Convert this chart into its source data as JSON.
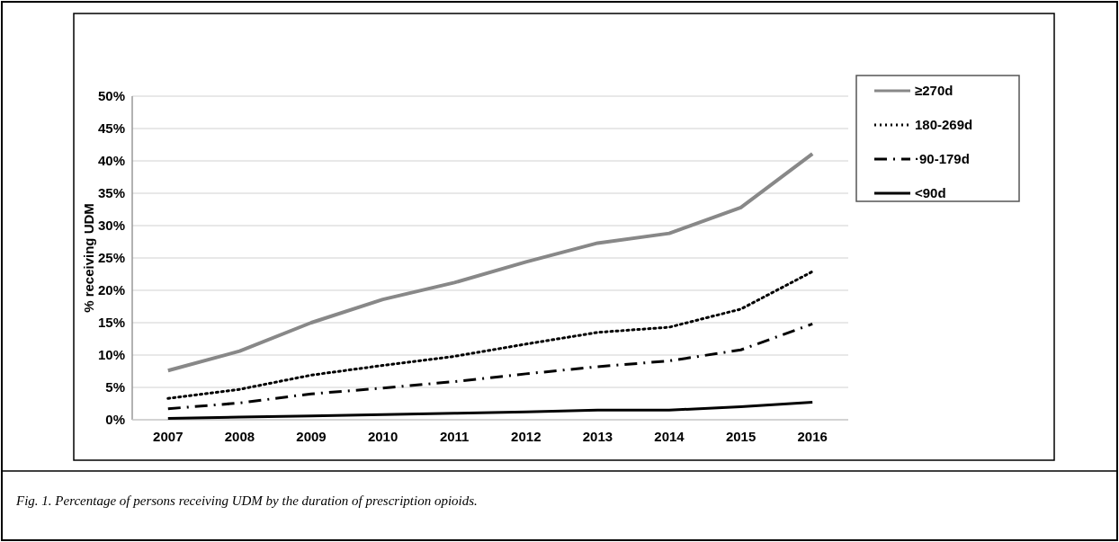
{
  "chart_data": {
    "type": "line",
    "ylabel": "% receiving UDM",
    "categories": [
      "2007",
      "2008",
      "2009",
      "2010",
      "2011",
      "2012",
      "2013",
      "2014",
      "2015",
      "2016"
    ],
    "series": [
      {
        "name": "≥270d",
        "color": "#888888",
        "line_style": "solid",
        "values": [
          7.6,
          10.6,
          15,
          18.6,
          21.2,
          24.4,
          27.3,
          28.8,
          32.8,
          41.1
        ]
      },
      {
        "name": "180-269d",
        "color": "#000000",
        "line_style": "dotted",
        "values": [
          3.3,
          4.7,
          6.9,
          8.4,
          9.8,
          11.7,
          13.5,
          14.3,
          17.1,
          22.9
        ]
      },
      {
        "name": "·90-179d",
        "color": "#000000",
        "line_style": "dashed",
        "values": [
          1.7,
          2.6,
          4,
          4.9,
          5.9,
          7.1,
          8.2,
          9.1,
          10.8,
          14.8
        ]
      },
      {
        "name": "<90d",
        "color": "#000000",
        "line_style": "solid",
        "values": [
          0.2,
          0.4,
          0.6,
          0.8,
          1,
          1.2,
          1.5,
          1.5,
          2,
          2.7
        ]
      }
    ],
    "ylim": [
      0,
      50
    ],
    "yticks": [
      {
        "value": 0,
        "label": "0%"
      },
      {
        "value": 5,
        "label": "5%"
      },
      {
        "value": 10,
        "label": "10%"
      },
      {
        "value": 15,
        "label": "15%"
      },
      {
        "value": 20,
        "label": "20%"
      },
      {
        "value": 25,
        "label": "25%"
      },
      {
        "value": 30,
        "label": "30%"
      },
      {
        "value": 35,
        "label": "35%"
      },
      {
        "value": 40,
        "label": "40%"
      },
      {
        "value": 45,
        "label": "45%"
      },
      {
        "value": 50,
        "label": "50%"
      }
    ],
    "grid": "y",
    "legend": "right",
    "marker": "none",
    "annotations": [
      "Fig. 1. Percentage of persons receiving UDM by the duration of prescription opioids."
    ]
  }
}
